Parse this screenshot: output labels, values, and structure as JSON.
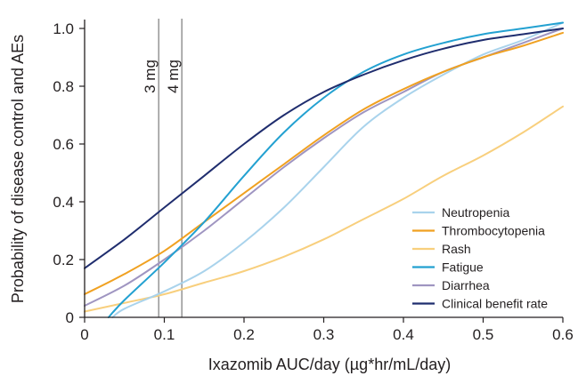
{
  "chart_data": {
    "type": "line",
    "title": "",
    "xlabel": "Ixazomib AUC/day (µg*hr/mL/day)",
    "ylabel": "Probability of disease control and AEs",
    "xlim": [
      0,
      0.6
    ],
    "ylim": [
      0,
      1.0
    ],
    "x_ticks": [
      "0",
      "0.1",
      "0.2",
      "0.3",
      "0.4",
      "0.5",
      "0.6"
    ],
    "y_ticks": [
      "0",
      "0.2",
      "0.4",
      "0.6",
      "0.8",
      "1.0"
    ],
    "grid": false,
    "legend_position": "bottom-right",
    "reference_lines": [
      {
        "x": 0.093,
        "label": "3 mg",
        "color": "#9a9a9a"
      },
      {
        "x": 0.122,
        "label": "4 mg",
        "color": "#9a9a9a"
      }
    ],
    "series": [
      {
        "name": "Neutropenia",
        "color": "#a9d3ec",
        "x": [
          0.035,
          0.05,
          0.1,
          0.15,
          0.2,
          0.25,
          0.3,
          0.35,
          0.4,
          0.45,
          0.5,
          0.55,
          0.6
        ],
        "y": [
          0.0,
          0.03,
          0.09,
          0.16,
          0.26,
          0.38,
          0.52,
          0.66,
          0.76,
          0.84,
          0.91,
          0.96,
          1.02
        ]
      },
      {
        "name": "Thrombocytopenia",
        "color": "#f0a121",
        "x": [
          0,
          0.05,
          0.1,
          0.15,
          0.2,
          0.25,
          0.3,
          0.35,
          0.4,
          0.45,
          0.5,
          0.55,
          0.6
        ],
        "y": [
          0.08,
          0.15,
          0.23,
          0.33,
          0.43,
          0.53,
          0.63,
          0.72,
          0.79,
          0.85,
          0.9,
          0.94,
          0.985
        ]
      },
      {
        "name": "Rash",
        "color": "#f8cf7d",
        "x": [
          0,
          0.05,
          0.1,
          0.15,
          0.2,
          0.25,
          0.3,
          0.35,
          0.4,
          0.45,
          0.5,
          0.55,
          0.6
        ],
        "y": [
          0.02,
          0.05,
          0.08,
          0.12,
          0.16,
          0.21,
          0.27,
          0.34,
          0.41,
          0.49,
          0.56,
          0.64,
          0.73
        ]
      },
      {
        "name": "Fatigue",
        "color": "#23a1d1",
        "x": [
          0.03,
          0.05,
          0.1,
          0.15,
          0.2,
          0.25,
          0.3,
          0.35,
          0.4,
          0.45,
          0.5,
          0.55,
          0.6
        ],
        "y": [
          0.0,
          0.06,
          0.19,
          0.33,
          0.49,
          0.64,
          0.76,
          0.85,
          0.91,
          0.95,
          0.98,
          1.0,
          1.02
        ]
      },
      {
        "name": "Diarrhea",
        "color": "#9f95c1",
        "x": [
          0,
          0.05,
          0.1,
          0.15,
          0.2,
          0.25,
          0.3,
          0.35,
          0.4,
          0.45,
          0.5,
          0.55,
          0.6
        ],
        "y": [
          0.04,
          0.11,
          0.2,
          0.3,
          0.41,
          0.52,
          0.62,
          0.71,
          0.78,
          0.85,
          0.9,
          0.95,
          1.0
        ]
      },
      {
        "name": "Clinical benefit rate",
        "color": "#1f2d6e",
        "x": [
          0,
          0.05,
          0.1,
          0.15,
          0.2,
          0.25,
          0.3,
          0.35,
          0.4,
          0.45,
          0.5,
          0.55,
          0.6
        ],
        "y": [
          0.17,
          0.27,
          0.38,
          0.49,
          0.6,
          0.7,
          0.78,
          0.84,
          0.89,
          0.93,
          0.96,
          0.98,
          1.0
        ]
      }
    ]
  }
}
